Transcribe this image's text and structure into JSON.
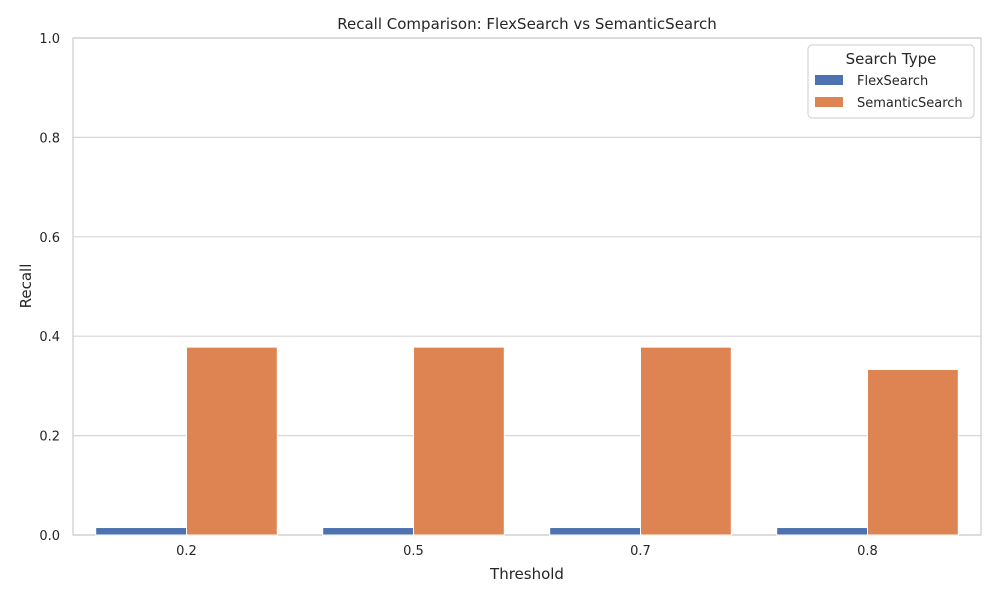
{
  "chart_data": {
    "type": "bar",
    "title": "Recall Comparison: FlexSearch vs SemanticSearch",
    "xlabel": "Threshold",
    "ylabel": "Recall",
    "categories": [
      "0.2",
      "0.5",
      "0.7",
      "0.8"
    ],
    "series": [
      {
        "name": "FlexSearch",
        "values": [
          0.015,
          0.015,
          0.015,
          0.015
        ],
        "color": "#4c72b0"
      },
      {
        "name": "SemanticSearch",
        "values": [
          0.378,
          0.378,
          0.378,
          0.333
        ],
        "color": "#dd8452"
      }
    ],
    "ylim": [
      0,
      1.0
    ],
    "yticks": [
      "0.0",
      "0.2",
      "0.4",
      "0.6",
      "0.8",
      "1.0"
    ],
    "grid": true,
    "legend": {
      "title": "Search Type",
      "placement": "top-right"
    }
  }
}
